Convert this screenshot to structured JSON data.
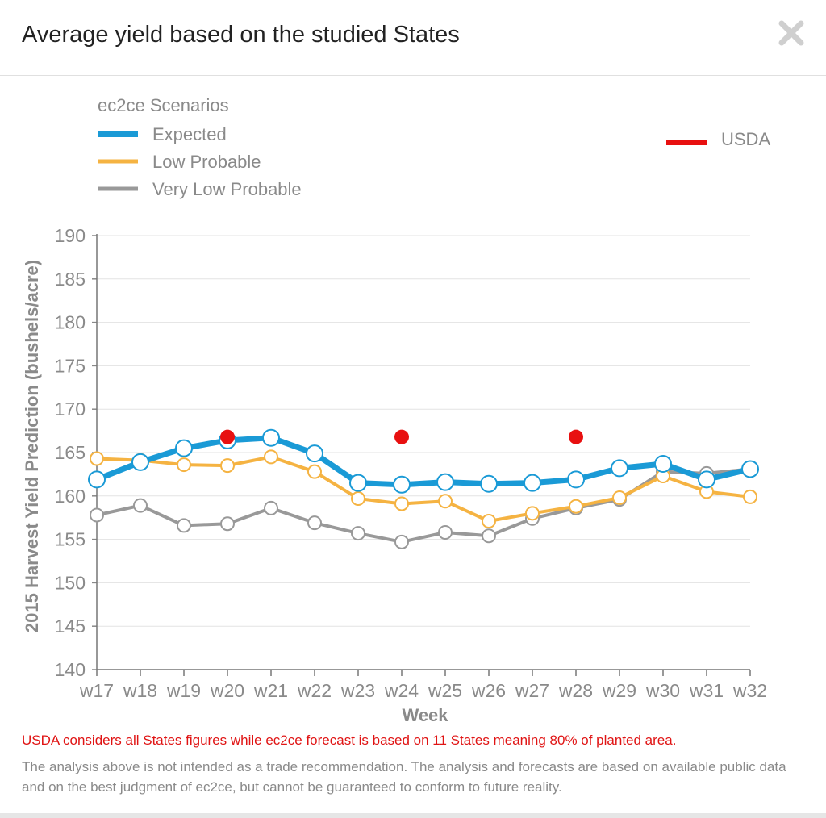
{
  "modal": {
    "title": "Average yield based on the studied States",
    "close_icon": "close-icon"
  },
  "chart_data": {
    "type": "line",
    "title": "Average yield based on the studied States",
    "legend_title": "ec2ce Scenarios",
    "xlabel": "Week",
    "ylabel": "2015 Harvest Yield Prediction (bushels/acre)",
    "ylim": [
      140,
      190
    ],
    "yticks": [
      140,
      145,
      150,
      155,
      160,
      165,
      170,
      175,
      180,
      185,
      190
    ],
    "grid": true,
    "categories": [
      "w17",
      "w18",
      "w19",
      "w20",
      "w21",
      "w22",
      "w23",
      "w24",
      "w25",
      "w26",
      "w27",
      "w28",
      "w29",
      "w30",
      "w31",
      "w32"
    ],
    "series": [
      {
        "name": "Very Low Probable",
        "color": "#999999",
        "values": [
          157.8,
          158.9,
          156.6,
          156.8,
          158.6,
          156.9,
          155.7,
          154.7,
          155.8,
          155.4,
          157.4,
          158.6,
          159.6,
          162.8,
          162.6,
          163.1
        ]
      },
      {
        "name": "Low Probable",
        "color": "#f5b342",
        "values": [
          164.3,
          164.1,
          163.6,
          163.5,
          164.5,
          162.8,
          159.7,
          159.1,
          159.4,
          157.1,
          158.0,
          158.8,
          159.8,
          162.3,
          160.5,
          159.9
        ]
      },
      {
        "name": "Expected",
        "color": "#1a9ad6",
        "values": [
          161.9,
          163.9,
          165.5,
          166.4,
          166.7,
          164.9,
          161.5,
          161.3,
          161.6,
          161.4,
          161.5,
          161.9,
          163.2,
          163.7,
          161.9,
          163.1
        ]
      }
    ],
    "usda": {
      "name": "USDA",
      "color": "#e81010",
      "points": [
        {
          "x": "w20",
          "y": 166.8
        },
        {
          "x": "w24",
          "y": 166.8
        },
        {
          "x": "w28",
          "y": 166.8
        }
      ]
    }
  },
  "footer": {
    "warning": "USDA considers all States figures while ec2ce forecast is based on 11 States meaning 80% of planted area.",
    "disclaimer": "The analysis above is not intended as a trade recommendation. The analysis and forecasts are based on available public data and on the best judgment of ec2ce, but cannot be guaranteed to conform to future reality."
  }
}
